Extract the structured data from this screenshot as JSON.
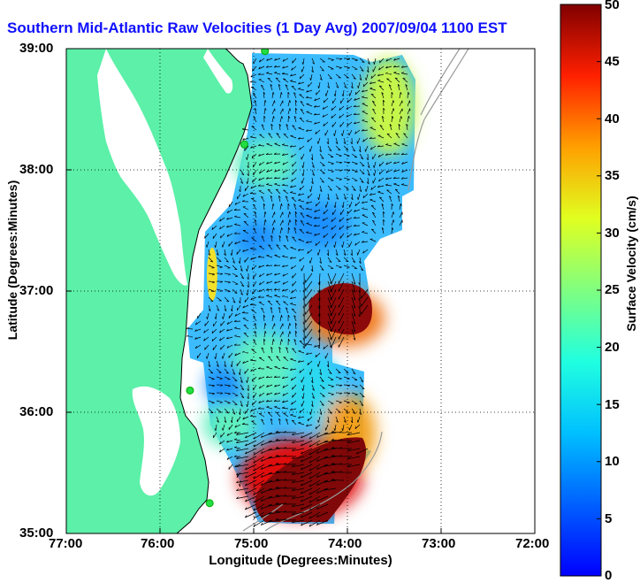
{
  "title": "Southern Mid-Atlantic Raw Velocities (1 Day Avg) 2007/09/04 1100 EST",
  "x_axis": {
    "label": "Longitude (Degrees:Minutes)",
    "ticks": [
      "77:00",
      "76:00",
      "75:00",
      "74:00",
      "73:00",
      "72:00"
    ]
  },
  "y_axis": {
    "label": "Latitude (Degrees:Minutes)",
    "ticks": [
      "39:00",
      "38:00",
      "37:00",
      "36:00",
      "35:00"
    ]
  },
  "colorbar": {
    "label": "Surface Velocity (cm/s)",
    "ticks": [
      "50",
      "45",
      "40",
      "35",
      "30",
      "25",
      "20",
      "15",
      "10",
      "5",
      "0"
    ],
    "range": [
      0,
      50
    ],
    "colormap": "jet"
  },
  "colors": {
    "title": "#1010ff",
    "land": "#5cf0a8",
    "station": "#22dd44",
    "arrow": "#000000",
    "bathymetry": "#999999"
  },
  "map_extent": {
    "lon": [
      -77,
      -72
    ],
    "lat": [
      35,
      39
    ]
  },
  "stations": [
    {
      "lon": -74.88,
      "lat": 38.98
    },
    {
      "lon": -75.1,
      "lat": 38.21
    },
    {
      "lon": -75.68,
      "lat": 36.18
    },
    {
      "lon": -75.47,
      "lat": 35.25
    }
  ]
}
